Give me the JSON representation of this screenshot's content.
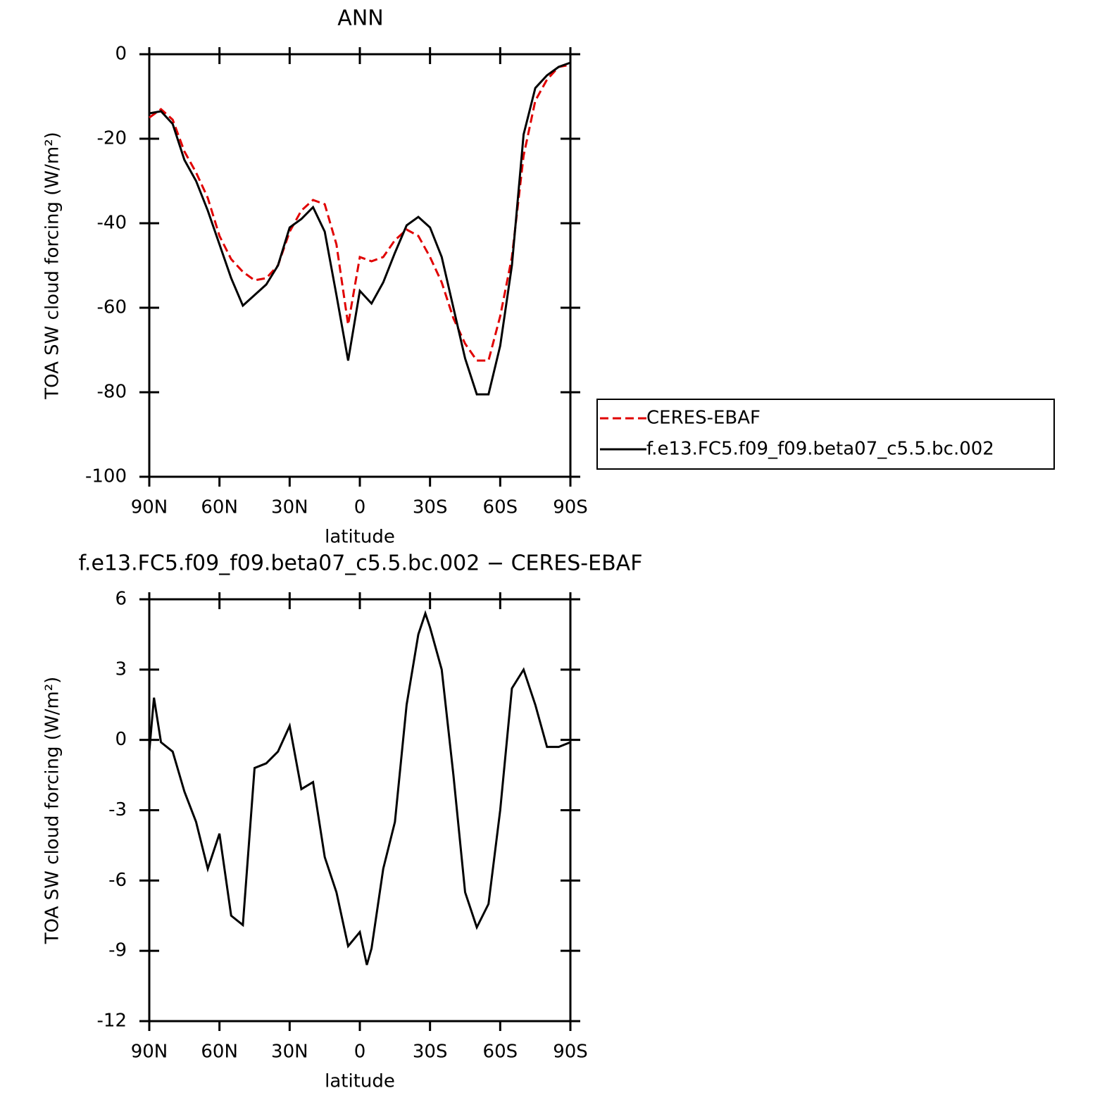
{
  "chart_data": [
    {
      "type": "line",
      "title": "ANN",
      "x_label": "latitude",
      "y_label": "TOA SW cloud forcing (W/m²)",
      "x": [
        90,
        85,
        80,
        75,
        70,
        65,
        60,
        55,
        50,
        45,
        40,
        35,
        30,
        25,
        20,
        15,
        10,
        5,
        0,
        -5,
        -10,
        -15,
        -20,
        -25,
        -30,
        -35,
        -40,
        -45,
        -50,
        -55,
        -60,
        -65,
        -70,
        -75,
        -80,
        -85,
        -90
      ],
      "series": [
        {
          "name": "CERES-EBAF",
          "color": "#e00000",
          "style": "dashed",
          "values": [
            -15,
            -13,
            -15.5,
            -23,
            -28,
            -34,
            -43,
            -48.5,
            -51.5,
            -53.5,
            -53,
            -50,
            -42,
            -37,
            -34.5,
            -35.5,
            -45,
            -64,
            -48,
            -49,
            -48,
            -44,
            -41.5,
            -43,
            -48,
            -54,
            -62.5,
            -68.5,
            -72.5,
            -72.5,
            -62,
            -48,
            -24,
            -11,
            -6,
            -3,
            -2.5
          ]
        },
        {
          "name": "f.e13.FC5.f09_f09.beta07_c5.5.bc.002",
          "color": "#000000",
          "style": "solid",
          "values": [
            -14,
            -13.5,
            -16.5,
            -25,
            -30,
            -37,
            -45,
            -53,
            -59.5,
            -57,
            -54.5,
            -50,
            -41,
            -39,
            -36.2,
            -42,
            -57,
            -72.5,
            -56,
            -59,
            -54,
            -47,
            -40.5,
            -38.5,
            -41,
            -48,
            -60,
            -72,
            -80.5,
            -80.5,
            -69,
            -50,
            -19,
            -8,
            -5,
            -3,
            -2
          ]
        }
      ],
      "xlim": [
        90,
        -90
      ],
      "xticks": [
        {
          "value": 90,
          "label": "90N"
        },
        {
          "value": 60,
          "label": "60N"
        },
        {
          "value": 30,
          "label": "30N"
        },
        0,
        {
          "value": -30,
          "label": "30S"
        },
        {
          "value": -60,
          "label": "60S"
        },
        {
          "value": -90,
          "label": "90S"
        }
      ],
      "ylim": [
        -100,
        0
      ],
      "yticks": [
        -100,
        -80,
        -60,
        -40,
        -20,
        0
      ],
      "legend": "right"
    },
    {
      "type": "line",
      "title": "f.e13.FC5.f09_f09.beta07_c5.5.bc.002 − CERES-EBAF",
      "x_label": "latitude",
      "y_label": "TOA SW cloud forcing (W/m²)",
      "x": [
        90,
        88,
        85,
        80,
        75,
        70,
        65,
        60,
        55,
        50,
        45,
        40,
        35,
        30,
        25,
        20,
        15,
        10,
        5,
        0,
        -3,
        -5,
        -10,
        -15,
        -20,
        -25,
        -28,
        -30,
        -35,
        -40,
        -45,
        -50,
        -55,
        -60,
        -65,
        -70,
        -75,
        -80,
        -85,
        -90
      ],
      "series": [
        {
          "name": "difference",
          "color": "#000000",
          "style": "solid",
          "values": [
            -0.5,
            1.8,
            -0.1,
            -0.5,
            -2.2,
            -3.5,
            -5.5,
            -4,
            -7.5,
            -7.9,
            -1.2,
            -1,
            -0.5,
            0.6,
            -2.1,
            -1.8,
            -5,
            -6.5,
            -8.8,
            -8.2,
            -9.6,
            -8.9,
            -5.5,
            -3.5,
            1.5,
            4.5,
            5.4,
            4.8,
            3,
            -1.5,
            -6.5,
            -8,
            -7,
            -3,
            2.2,
            3,
            1.5,
            -0.3,
            -0.3,
            -0.1
          ]
        }
      ],
      "xlim": [
        90,
        -90
      ],
      "xticks": [
        {
          "value": 90,
          "label": "90N"
        },
        {
          "value": 60,
          "label": "60N"
        },
        {
          "value": 30,
          "label": "30N"
        },
        0,
        {
          "value": -30,
          "label": "30S"
        },
        {
          "value": -60,
          "label": "60S"
        },
        {
          "value": -90,
          "label": "90S"
        }
      ],
      "ylim": [
        -12,
        6
      ],
      "yticks": [
        -12,
        -9,
        -6,
        -3,
        0,
        3,
        6
      ]
    }
  ]
}
